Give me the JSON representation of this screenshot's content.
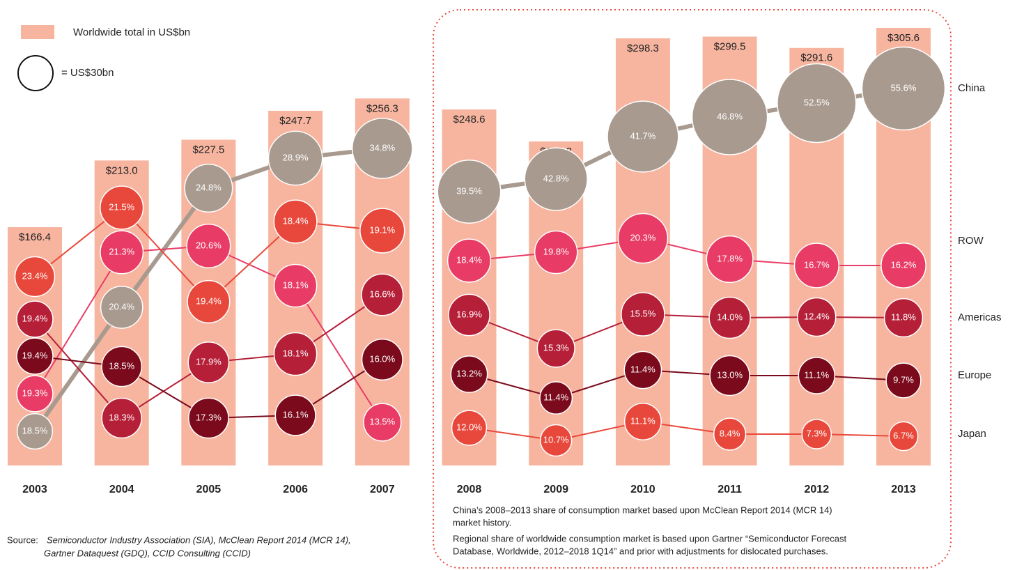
{
  "chart_data": {
    "type": "bubble-bar",
    "legend": {
      "bar_label": "Worldwide total in US$bn",
      "bar_color": "#f7b5a0",
      "circle": {
        "value": 30,
        "label": "= US$30bn"
      }
    },
    "categories": [
      "2003",
      "2004",
      "2005",
      "2006",
      "2007",
      "2008",
      "2009",
      "2010",
      "2011",
      "2012",
      "2013"
    ],
    "totals": [
      166.4,
      213.0,
      227.5,
      247.7,
      256.3,
      248.6,
      226.3,
      298.3,
      299.5,
      291.6,
      305.6
    ],
    "totals_labels": [
      "$166.4",
      "$213.0",
      "$227.5",
      "$247.7",
      "$256.3",
      "$248.6",
      "$226.3",
      "$298.3",
      "$299.5",
      "$291.6",
      "$305.6"
    ],
    "series": [
      {
        "name": "China",
        "color": "#a89a8f",
        "values": [
          18.5,
          20.4,
          24.8,
          28.9,
          34.8,
          39.5,
          42.8,
          41.7,
          46.8,
          52.5,
          55.6
        ],
        "value_labels": [
          "18.5%",
          "20.4%",
          "24.8%",
          "28.9%",
          "34.8%",
          "39.5%",
          "42.8%",
          "41.7%",
          "46.8%",
          "52.5%",
          "55.6%"
        ]
      },
      {
        "name": "ROW",
        "color": "#e83c66",
        "values": [
          19.3,
          21.3,
          20.6,
          18.1,
          13.5,
          18.4,
          19.8,
          20.3,
          17.8,
          16.7,
          16.2
        ],
        "value_labels": [
          "19.3%",
          "21.3%",
          "20.6%",
          "18.1%",
          "13.5%",
          "18.4%",
          "19.8%",
          "20.3%",
          "17.8%",
          "16.7%",
          "16.2%"
        ]
      },
      {
        "name": "Americas",
        "color": "#b51f38",
        "values": [
          19.4,
          18.3,
          17.9,
          18.1,
          16.6,
          16.9,
          15.3,
          15.5,
          14.0,
          12.4,
          11.8
        ],
        "value_labels": [
          "19.4%",
          "18.3%",
          "17.9%",
          "18.1%",
          "16.6%",
          "16.9%",
          "15.3%",
          "15.5%",
          "14.0%",
          "12.4%",
          "11.8%"
        ]
      },
      {
        "name": "Europe",
        "color": "#7a0a1c",
        "values": [
          19.4,
          18.5,
          17.3,
          16.1,
          16.0,
          13.2,
          11.4,
          11.4,
          13.0,
          11.1,
          9.7
        ],
        "value_labels": [
          "19.4%",
          "18.5%",
          "17.3%",
          "16.1%",
          "16.0%",
          "13.2%",
          "11.4%",
          "11.4%",
          "13.0%",
          "11.1%",
          "9.7%"
        ]
      },
      {
        "name": "Japan",
        "color": "#e8483b",
        "values": [
          23.4,
          21.5,
          19.4,
          18.4,
          19.1,
          12.0,
          10.7,
          11.1,
          8.4,
          7.3,
          6.7
        ],
        "value_labels": [
          "23.4%",
          "21.5%",
          "19.4%",
          "18.4%",
          "19.1%",
          "12.0%",
          "10.7%",
          "11.1%",
          "8.4%",
          "7.3%",
          "6.7%"
        ]
      }
    ],
    "source": {
      "prefix": "Source:",
      "lines": [
        "Semiconductor Industry Association (SIA), McClean Report 2014 (MCR 14),",
        "Gartner Dataquest (GDQ), CCID Consulting (CCID)"
      ]
    },
    "notes": [
      [
        "China’s 2008–2013 share of consumption market based upon McClean Report 2014 (MCR 14)",
        "market history."
      ],
      [
        "Regional share of worldwide consumption market is based upon Gartner “Semiconductor Forecast",
        "Database, Worldwide, 2012–2018 1Q14” and prior with adjustments for dislocated purchases."
      ]
    ]
  }
}
